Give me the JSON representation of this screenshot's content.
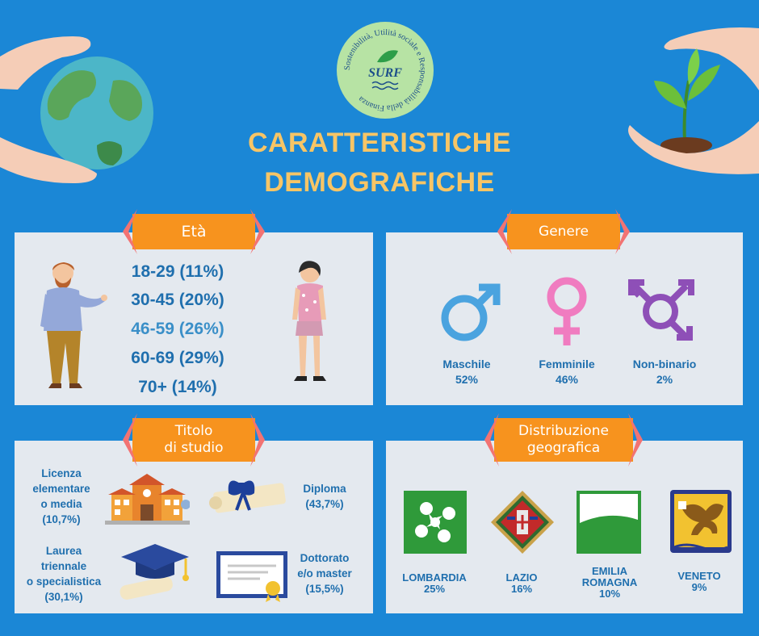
{
  "logo": {
    "ring_text": "Sostenibilità, Utilità sociale e Responsabilità della Finanza",
    "name": "SURF"
  },
  "title": {
    "line1": "CARATTERISTICHE",
    "line2": "DEMOGRAFICHE"
  },
  "eta": {
    "label": "Età",
    "ranges": [
      "18-29 (11%)",
      "30-45 (20%)",
      "46-59 (26%)",
      "60-69 (29%)",
      "70+ (14%)"
    ]
  },
  "genere": {
    "label": "Genere",
    "items": [
      {
        "name": "Maschile",
        "pct": "52%",
        "color": "#4aa3df",
        "icon": "male-symbol-icon"
      },
      {
        "name": "Femminile",
        "pct": "46%",
        "color": "#f07cc0",
        "icon": "female-symbol-icon"
      },
      {
        "name": "Non-binario",
        "pct": "2%",
        "color": "#8e4fb7",
        "icon": "transgender-symbol-icon"
      }
    ]
  },
  "titolo": {
    "label_line1": "Titolo",
    "label_line2": "di studio",
    "licenza": [
      "Licenza",
      "elementare",
      "o media",
      "(10,7%)"
    ],
    "diploma": [
      "Diploma",
      "(43,7%)"
    ],
    "laurea": [
      "Laurea",
      "triennale",
      "o specialistica",
      "(30,1%)"
    ],
    "dottorato": [
      "Dottorato",
      "e/o master",
      "(15,5%)"
    ]
  },
  "geo": {
    "label_line1": "Distribuzione",
    "label_line2": "geografica",
    "regions": [
      {
        "name_line1": "LOMBARDIA",
        "name_line2": "",
        "pct": "25%"
      },
      {
        "name_line1": "LAZIO",
        "name_line2": "",
        "pct": "16%"
      },
      {
        "name_line1": "EMILIA",
        "name_line2": "ROMAGNA",
        "pct": "10%"
      },
      {
        "name_line1": "VENETO",
        "name_line2": "",
        "pct": "9%"
      }
    ]
  },
  "colors": {
    "background": "#1b87d6",
    "title": "#f7c566",
    "ribbon": "#f7931e",
    "text": "#1f6fae",
    "panel": "#e4e9ef"
  }
}
